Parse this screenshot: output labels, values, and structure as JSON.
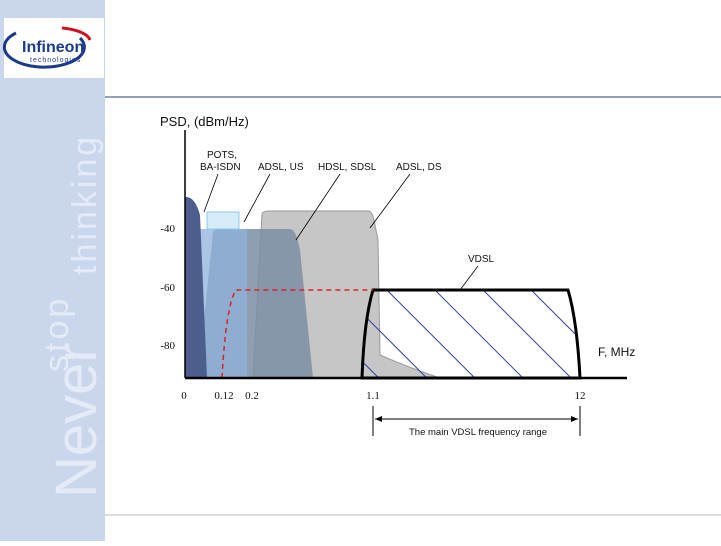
{
  "logo": {
    "name": "Infineon",
    "sub": "technologies"
  },
  "slogan": {
    "never": "Never",
    "stop": "stop",
    "thinking": "thinking"
  },
  "diagram": {
    "y_axis_label": "PSD, (dBm/Hz)",
    "x_axis_label": "F, MHz",
    "y_labels": [
      "-40",
      "-60",
      "-80"
    ],
    "x_labels": [
      "0",
      "0.12",
      "0.2",
      "1.1",
      "12"
    ],
    "series": [
      {
        "lines": [
          "POTS,",
          "BA-ISDN"
        ]
      },
      {
        "lines": [
          "ADSL, US"
        ]
      },
      {
        "lines": [
          "HDSL, SDSL"
        ]
      },
      {
        "lines": [
          "ADSL, DS"
        ]
      },
      {
        "lines": [
          "VDSL"
        ]
      }
    ],
    "range_label": "The main VDSL frequency range"
  }
}
